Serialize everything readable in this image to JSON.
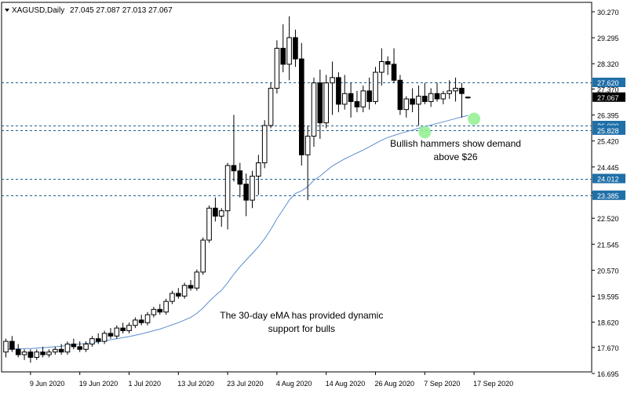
{
  "header": {
    "symbol_label": "XAGUSD,Daily",
    "ohlc_text": "27.045 27.087 27.013 27.067"
  },
  "colors": {
    "candle_up_fill": "#ffffff",
    "candle_down_fill": "#000000",
    "candle_outline": "#000000",
    "ema_line": "#5b8fd0",
    "level_line": "#1f5d8a",
    "label_bg": "#1f6fa8",
    "current_label_bg": "#000000",
    "highlight": "#90ee90"
  },
  "chart_data": {
    "type": "candlestick",
    "symbol": "XAGUSD",
    "timeframe": "Daily",
    "y_ticks": [
      "30.270",
      "29.295",
      "28.320",
      "27.370",
      "26.395",
      "25.420",
      "24.445",
      "23.470",
      "22.520",
      "21.545",
      "20.570",
      "19.595",
      "18.620",
      "17.670",
      "16.695"
    ],
    "ylim": [
      16.695,
      30.27
    ],
    "x_ticks": [
      {
        "label": "9 Jun 2020",
        "index": 4
      },
      {
        "label": "19 Jun 2020",
        "index": 12
      },
      {
        "label": "1 Jul 2020",
        "index": 20
      },
      {
        "label": "13 Jul 2020",
        "index": 28
      },
      {
        "label": "23 Jul 2020",
        "index": 36
      },
      {
        "label": "4 Aug 2020",
        "index": 44
      },
      {
        "label": "14 Aug 2020",
        "index": 52
      },
      {
        "label": "26 Aug 2020",
        "index": 60
      },
      {
        "label": "7 Sep 2020",
        "index": 68
      },
      {
        "label": "17 Sep 2020",
        "index": 76
      }
    ],
    "candles": [
      [
        17.5,
        18.0,
        17.3,
        17.9
      ],
      [
        17.9,
        18.1,
        17.5,
        17.6
      ],
      [
        17.6,
        17.8,
        17.3,
        17.4
      ],
      [
        17.4,
        17.6,
        17.2,
        17.5
      ],
      [
        17.5,
        17.6,
        17.1,
        17.3
      ],
      [
        17.3,
        17.6,
        17.2,
        17.5
      ],
      [
        17.5,
        17.7,
        17.3,
        17.4
      ],
      [
        17.4,
        17.6,
        17.3,
        17.5
      ],
      [
        17.5,
        17.7,
        17.4,
        17.6
      ],
      [
        17.6,
        17.8,
        17.4,
        17.5
      ],
      [
        17.5,
        17.9,
        17.4,
        17.8
      ],
      [
        17.8,
        18.0,
        17.6,
        17.7
      ],
      [
        17.7,
        17.9,
        17.5,
        17.6
      ],
      [
        17.6,
        17.9,
        17.5,
        17.8
      ],
      [
        17.8,
        18.1,
        17.7,
        18.0
      ],
      [
        18.0,
        18.2,
        17.8,
        17.9
      ],
      [
        17.9,
        18.3,
        17.8,
        18.2
      ],
      [
        18.2,
        18.4,
        18.0,
        18.1
      ],
      [
        18.1,
        18.5,
        18.0,
        18.4
      ],
      [
        18.4,
        18.6,
        18.2,
        18.3
      ],
      [
        18.3,
        18.6,
        18.2,
        18.5
      ],
      [
        18.5,
        18.8,
        18.4,
        18.7
      ],
      [
        18.7,
        18.9,
        18.5,
        18.6
      ],
      [
        18.6,
        19.0,
        18.5,
        18.9
      ],
      [
        18.9,
        19.2,
        18.8,
        19.1
      ],
      [
        19.1,
        19.3,
        18.9,
        19.0
      ],
      [
        19.0,
        19.5,
        18.9,
        19.4
      ],
      [
        19.4,
        19.8,
        19.3,
        19.7
      ],
      [
        19.7,
        19.9,
        19.5,
        19.6
      ],
      [
        19.6,
        20.1,
        19.5,
        20.0
      ],
      [
        20.0,
        20.2,
        19.8,
        19.9
      ],
      [
        19.9,
        20.6,
        19.8,
        20.5
      ],
      [
        20.5,
        21.8,
        20.4,
        21.7
      ],
      [
        21.7,
        23.0,
        21.6,
        22.9
      ],
      [
        22.9,
        23.3,
        22.4,
        22.6
      ],
      [
        22.6,
        22.9,
        22.2,
        22.8
      ],
      [
        22.8,
        24.6,
        22.1,
        24.5
      ],
      [
        24.5,
        26.4,
        23.9,
        24.3
      ],
      [
        24.3,
        24.6,
        23.3,
        23.8
      ],
      [
        23.8,
        24.2,
        22.6,
        23.2
      ],
      [
        23.2,
        24.3,
        22.9,
        24.1
      ],
      [
        24.1,
        24.9,
        23.4,
        24.6
      ],
      [
        24.6,
        26.2,
        24.4,
        26.0
      ],
      [
        26.0,
        27.6,
        25.9,
        27.4
      ],
      [
        27.4,
        29.2,
        27.2,
        28.9
      ],
      [
        28.9,
        29.8,
        28.0,
        28.3
      ],
      [
        28.3,
        30.1,
        27.7,
        29.3
      ],
      [
        29.3,
        29.6,
        28.2,
        28.5
      ],
      [
        28.5,
        29.1,
        24.5,
        24.9
      ],
      [
        24.9,
        26.0,
        23.2,
        25.6
      ],
      [
        25.6,
        27.8,
        25.2,
        27.6
      ],
      [
        27.6,
        28.1,
        25.5,
        26.1
      ],
      [
        26.1,
        27.9,
        25.9,
        27.6
      ],
      [
        27.6,
        28.4,
        26.4,
        27.8
      ],
      [
        27.8,
        28.0,
        26.5,
        26.8
      ],
      [
        26.8,
        27.9,
        26.6,
        27.2
      ],
      [
        27.2,
        27.6,
        26.3,
        26.9
      ],
      [
        26.9,
        27.3,
        26.5,
        26.7
      ],
      [
        26.7,
        27.5,
        26.5,
        27.3
      ],
      [
        27.3,
        27.8,
        26.6,
        26.9
      ],
      [
        26.9,
        28.2,
        26.8,
        28.0
      ],
      [
        28.0,
        28.9,
        27.5,
        28.4
      ],
      [
        28.4,
        28.6,
        27.9,
        28.3
      ],
      [
        28.3,
        28.9,
        27.6,
        27.7
      ],
      [
        27.7,
        27.9,
        26.4,
        26.6
      ],
      [
        26.6,
        27.1,
        26.3,
        27.0
      ],
      [
        27.0,
        27.4,
        26.5,
        26.8
      ],
      [
        26.8,
        27.5,
        26.0,
        27.1
      ],
      [
        27.1,
        27.6,
        26.8,
        26.9
      ],
      [
        26.9,
        27.4,
        26.7,
        27.2
      ],
      [
        27.2,
        27.6,
        26.9,
        27.0
      ],
      [
        27.0,
        27.3,
        26.8,
        27.2
      ],
      [
        27.2,
        27.7,
        27.0,
        27.3
      ],
      [
        27.3,
        27.8,
        26.9,
        27.4
      ],
      [
        27.4,
        27.6,
        26.3,
        27.2
      ],
      [
        27.045,
        27.087,
        27.013,
        27.067
      ]
    ],
    "ema_label": "30-day eMA",
    "ema": [
      17.6,
      17.62,
      17.62,
      17.63,
      17.63,
      17.65,
      17.66,
      17.68,
      17.7,
      17.72,
      17.75,
      17.78,
      17.8,
      17.82,
      17.85,
      17.88,
      17.92,
      17.96,
      18.0,
      18.04,
      18.08,
      18.13,
      18.18,
      18.24,
      18.3,
      18.36,
      18.44,
      18.52,
      18.6,
      18.7,
      18.8,
      18.95,
      19.15,
      19.4,
      19.62,
      19.82,
      20.1,
      20.42,
      20.7,
      20.95,
      21.2,
      21.45,
      21.75,
      22.1,
      22.5,
      22.85,
      23.2,
      23.45,
      23.55,
      23.7,
      23.95,
      24.1,
      24.3,
      24.48,
      24.62,
      24.75,
      24.86,
      24.97,
      25.08,
      25.2,
      25.33,
      25.45,
      25.55,
      25.63,
      25.7,
      25.77,
      25.83,
      25.9,
      25.96,
      26.02,
      26.08,
      26.14,
      26.2,
      26.26,
      26.32,
      26.38
    ],
    "levels": [
      27.62,
      26.0,
      25.828,
      24.012,
      23.385
    ],
    "level_labels": [
      "27.620",
      "26.000",
      "25.828",
      "24.012",
      "23.385"
    ],
    "current_price": 27.067,
    "current_price_label": "27.067",
    "highlight_points": [
      {
        "index": 68,
        "value": 25.75
      },
      {
        "index": 76,
        "value": 26.25
      }
    ],
    "annotations": [
      {
        "text": [
          "Bullish hammers show demand",
          "above $26"
        ],
        "anchor_index": 73,
        "value": 25.2
      },
      {
        "text": [
          "The 30-day eMA has provided dynamic",
          "support for bulls"
        ],
        "anchor_index": 48,
        "value": 18.75
      }
    ]
  }
}
